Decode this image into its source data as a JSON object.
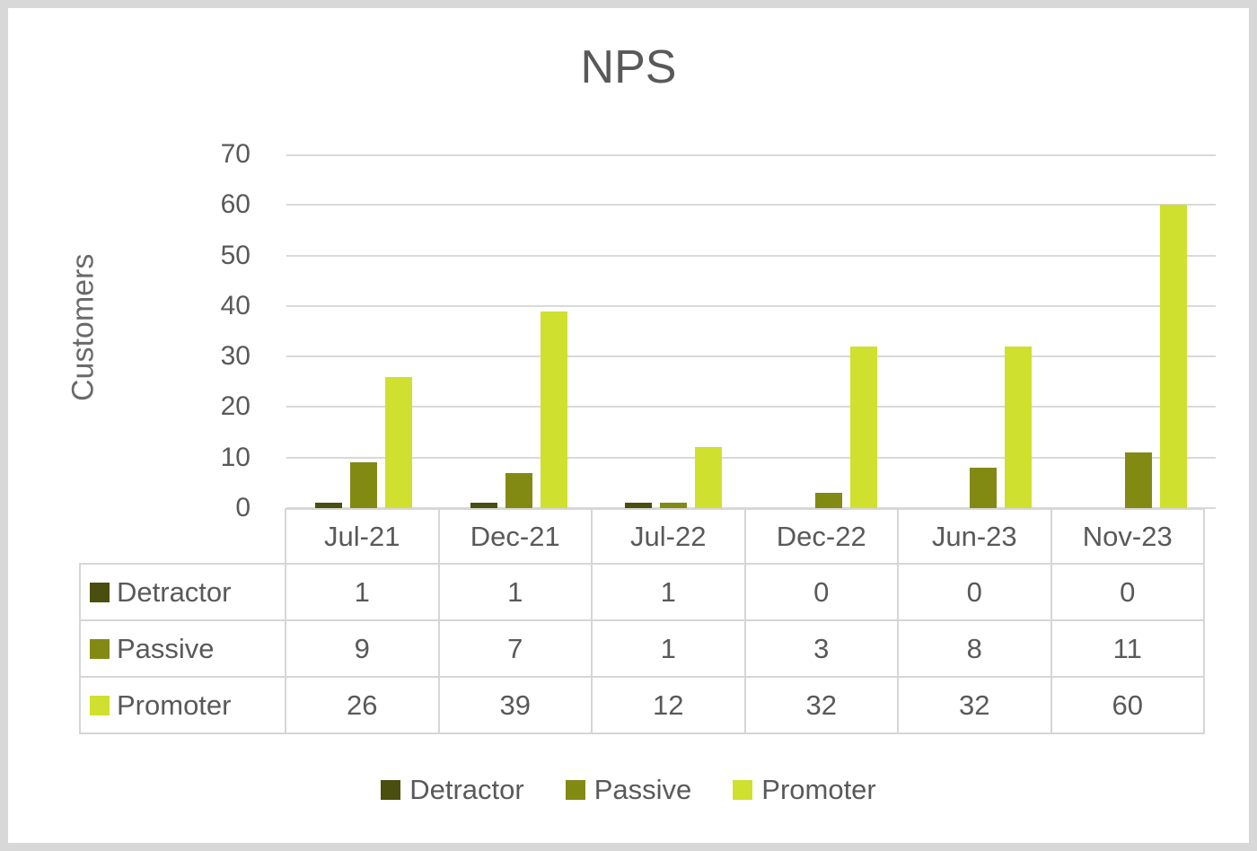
{
  "title": "NPS",
  "frame": {
    "border_color": "#d8d8d8",
    "background": "#ffffff"
  },
  "colors": {
    "text": "#595959",
    "gridline": "#d9d9d9",
    "table_border": "#d6d6d6",
    "detractor": "#4a4e0e",
    "passive": "#828a13",
    "promoter": "#d0e02e"
  },
  "chart_data": {
    "type": "bar",
    "title": "NPS",
    "xlabel": "",
    "ylabel": "Customers",
    "ylim": [
      0,
      70
    ],
    "ytick_step": 10,
    "yticks": [
      0,
      10,
      20,
      30,
      40,
      50,
      60,
      70
    ],
    "grid": true,
    "legend_position": "bottom",
    "data_table_shown": true,
    "categories": [
      "Jul-21",
      "Dec-21",
      "Jul-22",
      "Dec-22",
      "Jun-23",
      "Nov-23"
    ],
    "series": [
      {
        "name": "Detractor",
        "color": "#4a4e0e",
        "values": [
          1,
          1,
          1,
          0,
          0,
          0
        ]
      },
      {
        "name": "Passive",
        "color": "#828a13",
        "values": [
          9,
          7,
          1,
          3,
          8,
          11
        ]
      },
      {
        "name": "Promoter",
        "color": "#d0e02e",
        "values": [
          26,
          39,
          12,
          32,
          32,
          60
        ]
      }
    ]
  }
}
